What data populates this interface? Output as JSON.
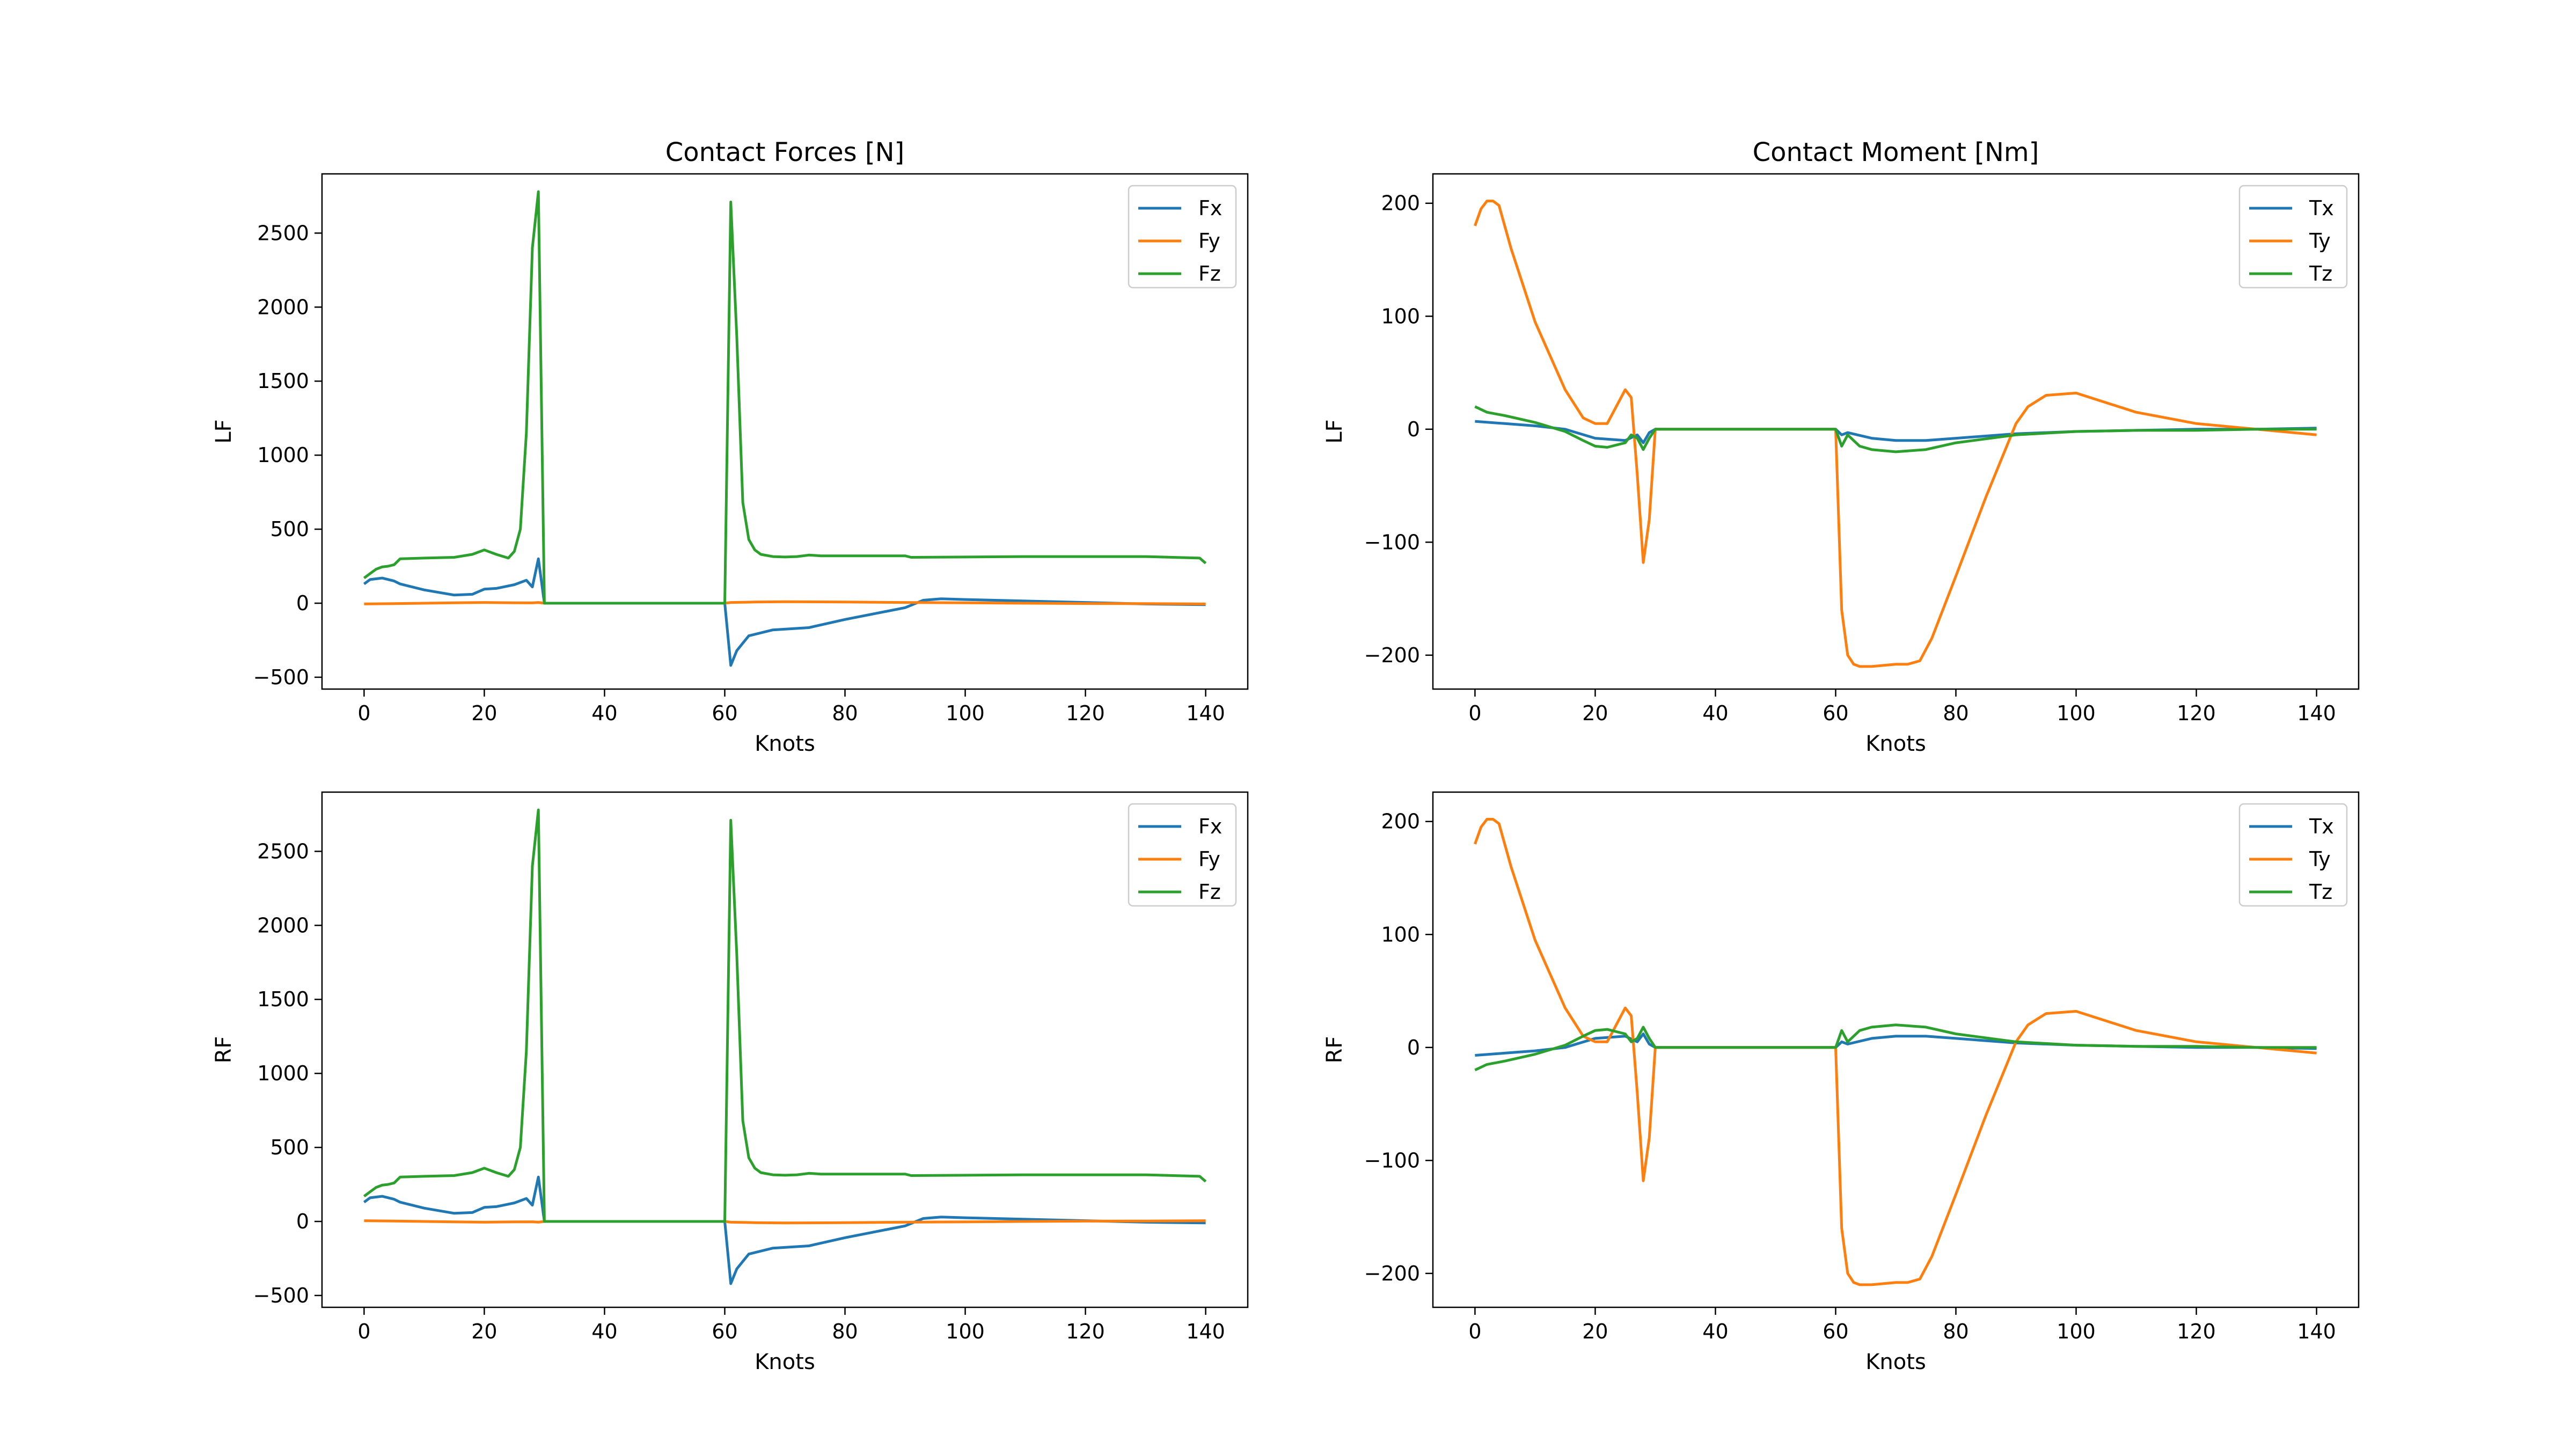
{
  "figure": {
    "colors": {
      "C0": "#1f77b4",
      "C1": "#ff7f0e",
      "C2": "#2ca02c"
    }
  },
  "chart_data": [
    {
      "type": "line",
      "title": "Contact Forces [N]",
      "xlabel": "Knots",
      "ylabel": "LF",
      "xlim": [
        -7,
        147
      ],
      "ylim": [
        -580,
        2900
      ],
      "xticks": [
        0,
        20,
        40,
        60,
        80,
        100,
        120,
        140
      ],
      "yticks": [
        -500,
        0,
        500,
        1000,
        1500,
        2000,
        2500
      ],
      "ytick_labels": [
        "−500",
        "0",
        "500",
        "1000",
        "1500",
        "2000",
        "2500"
      ],
      "legend": "top-right",
      "series": [
        {
          "name": "Fx",
          "color": "#1f77b4",
          "x": [
            0,
            1,
            3,
            5,
            6,
            10,
            15,
            18,
            20,
            22,
            25,
            27,
            28,
            29,
            30,
            60,
            61,
            62,
            64,
            68,
            74,
            80,
            85,
            90,
            93,
            96,
            100,
            110,
            120,
            130,
            140
          ],
          "y": [
            130,
            160,
            170,
            150,
            130,
            90,
            55,
            60,
            95,
            100,
            125,
            155,
            110,
            300,
            0,
            0,
            -420,
            -320,
            -220,
            -180,
            -165,
            -110,
            -70,
            -30,
            20,
            30,
            25,
            15,
            5,
            -5,
            -10
          ]
        },
        {
          "name": "Fy",
          "color": "#ff7f0e",
          "x": [
            0,
            5,
            10,
            15,
            20,
            25,
            28,
            29,
            30,
            60,
            61,
            65,
            70,
            80,
            90,
            100,
            110,
            120,
            130,
            140
          ],
          "y": [
            -5,
            -3,
            0,
            3,
            5,
            3,
            2,
            5,
            0,
            0,
            5,
            8,
            10,
            8,
            5,
            3,
            0,
            -2,
            -3,
            -5
          ]
        },
        {
          "name": "Fz",
          "color": "#2ca02c",
          "x": [
            0,
            1,
            2,
            3,
            4,
            5,
            6,
            10,
            15,
            18,
            20,
            22,
            24,
            25,
            26,
            27,
            28,
            29,
            30,
            60,
            61,
            62,
            63,
            64,
            65,
            66,
            68,
            70,
            72,
            74,
            76,
            80,
            85,
            90,
            91,
            100,
            110,
            120,
            130,
            139,
            140
          ],
          "y": [
            170,
            200,
            230,
            245,
            250,
            260,
            300,
            305,
            310,
            330,
            360,
            330,
            305,
            350,
            500,
            1150,
            2400,
            2780,
            0,
            0,
            2710,
            1800,
            680,
            430,
            360,
            330,
            315,
            312,
            315,
            325,
            320,
            320,
            320,
            320,
            310,
            312,
            315,
            315,
            315,
            305,
            270
          ]
        }
      ]
    },
    {
      "type": "line",
      "title": "Contact Moment [Nm]",
      "xlabel": "Knots",
      "ylabel": "LF",
      "xlim": [
        -7,
        147
      ],
      "ylim": [
        -230,
        226
      ],
      "xticks": [
        0,
        20,
        40,
        60,
        80,
        100,
        120,
        140
      ],
      "yticks": [
        -200,
        -100,
        0,
        100,
        200
      ],
      "ytick_labels": [
        "−200",
        "−100",
        "0",
        "100",
        "200"
      ],
      "legend": "top-right",
      "series": [
        {
          "name": "Tx",
          "color": "#1f77b4",
          "x": [
            0,
            5,
            10,
            15,
            20,
            25,
            27,
            28,
            29,
            30,
            60,
            61,
            62,
            66,
            70,
            75,
            80,
            90,
            100,
            110,
            120,
            130,
            140
          ],
          "y": [
            7,
            5,
            3,
            0,
            -8,
            -10,
            -5,
            -12,
            -3,
            0,
            0,
            -5,
            -3,
            -8,
            -10,
            -10,
            -8,
            -4,
            -2,
            -1,
            0,
            0,
            1
          ]
        },
        {
          "name": "Ty",
          "color": "#ff7f0e",
          "x": [
            0,
            1,
            2,
            3,
            4,
            6,
            10,
            15,
            18,
            20,
            22,
            24,
            25,
            26,
            27,
            28,
            29,
            30,
            60,
            61,
            62,
            63,
            64,
            66,
            70,
            72,
            74,
            76,
            80,
            85,
            90,
            92,
            95,
            100,
            110,
            120,
            130,
            140
          ],
          "y": [
            180,
            195,
            202,
            202,
            198,
            160,
            95,
            35,
            10,
            5,
            5,
            25,
            35,
            28,
            -40,
            -118,
            -80,
            0,
            0,
            -160,
            -200,
            -208,
            -210,
            -210,
            -208,
            -208,
            -205,
            -185,
            -130,
            -60,
            5,
            20,
            30,
            32,
            15,
            5,
            0,
            -5
          ]
        },
        {
          "name": "Tz",
          "color": "#2ca02c",
          "x": [
            0,
            2,
            5,
            10,
            15,
            18,
            20,
            22,
            25,
            26,
            27,
            28,
            29,
            30,
            60,
            61,
            62,
            64,
            66,
            70,
            75,
            80,
            90,
            100,
            110,
            120,
            130,
            140
          ],
          "y": [
            20,
            15,
            12,
            6,
            -2,
            -10,
            -15,
            -16,
            -12,
            -5,
            -8,
            -18,
            -8,
            0,
            0,
            -15,
            -5,
            -15,
            -18,
            -20,
            -18,
            -12,
            -5,
            -2,
            -1,
            -1,
            0,
            0
          ]
        }
      ]
    },
    {
      "type": "line",
      "title": "",
      "xlabel": "Knots",
      "ylabel": "RF",
      "xlim": [
        -7,
        147
      ],
      "ylim": [
        -580,
        2900
      ],
      "xticks": [
        0,
        20,
        40,
        60,
        80,
        100,
        120,
        140
      ],
      "yticks": [
        -500,
        0,
        500,
        1000,
        1500,
        2000,
        2500
      ],
      "ytick_labels": [
        "−500",
        "0",
        "500",
        "1000",
        "1500",
        "2000",
        "2500"
      ],
      "legend": "top-right",
      "series": [
        {
          "name": "Fx",
          "color": "#1f77b4",
          "x": [
            0,
            1,
            3,
            5,
            6,
            10,
            15,
            18,
            20,
            22,
            25,
            27,
            28,
            29,
            30,
            60,
            61,
            62,
            64,
            68,
            74,
            80,
            85,
            90,
            93,
            96,
            100,
            110,
            120,
            130,
            140
          ],
          "y": [
            130,
            160,
            170,
            150,
            130,
            90,
            55,
            60,
            95,
            100,
            125,
            155,
            110,
            300,
            0,
            0,
            -420,
            -320,
            -220,
            -180,
            -165,
            -110,
            -70,
            -30,
            20,
            30,
            25,
            15,
            5,
            -5,
            -10
          ]
        },
        {
          "name": "Fy",
          "color": "#ff7f0e",
          "x": [
            0,
            5,
            10,
            15,
            20,
            25,
            28,
            29,
            30,
            60,
            61,
            65,
            70,
            80,
            90,
            100,
            110,
            120,
            130,
            140
          ],
          "y": [
            5,
            3,
            0,
            -3,
            -5,
            -3,
            -2,
            -5,
            0,
            0,
            -5,
            -8,
            -10,
            -8,
            -5,
            -3,
            0,
            2,
            3,
            5
          ]
        },
        {
          "name": "Fz",
          "color": "#2ca02c",
          "x": [
            0,
            1,
            2,
            3,
            4,
            5,
            6,
            10,
            15,
            18,
            20,
            22,
            24,
            25,
            26,
            27,
            28,
            29,
            30,
            60,
            61,
            62,
            63,
            64,
            65,
            66,
            68,
            70,
            72,
            74,
            76,
            80,
            85,
            90,
            91,
            100,
            110,
            120,
            130,
            139,
            140
          ],
          "y": [
            170,
            200,
            230,
            245,
            250,
            260,
            300,
            305,
            310,
            330,
            360,
            330,
            305,
            350,
            500,
            1150,
            2400,
            2780,
            0,
            0,
            2710,
            1800,
            680,
            430,
            360,
            330,
            315,
            312,
            315,
            325,
            320,
            320,
            320,
            320,
            310,
            312,
            315,
            315,
            315,
            305,
            270
          ]
        }
      ]
    },
    {
      "type": "line",
      "title": "",
      "xlabel": "Knots",
      "ylabel": "RF",
      "xlim": [
        -7,
        147
      ],
      "ylim": [
        -230,
        226
      ],
      "xticks": [
        0,
        20,
        40,
        60,
        80,
        100,
        120,
        140
      ],
      "yticks": [
        -200,
        -100,
        0,
        100,
        200
      ],
      "ytick_labels": [
        "−200",
        "−100",
        "0",
        "100",
        "200"
      ],
      "legend": "top-right",
      "series": [
        {
          "name": "Tx",
          "color": "#1f77b4",
          "x": [
            0,
            5,
            10,
            15,
            20,
            25,
            27,
            28,
            29,
            30,
            60,
            61,
            62,
            66,
            70,
            75,
            80,
            90,
            100,
            110,
            120,
            130,
            140
          ],
          "y": [
            -7,
            -5,
            -3,
            0,
            8,
            10,
            5,
            12,
            3,
            0,
            0,
            5,
            3,
            8,
            10,
            10,
            8,
            4,
            2,
            1,
            0,
            0,
            -1
          ]
        },
        {
          "name": "Ty",
          "color": "#ff7f0e",
          "x": [
            0,
            1,
            2,
            3,
            4,
            6,
            10,
            15,
            18,
            20,
            22,
            24,
            25,
            26,
            27,
            28,
            29,
            30,
            60,
            61,
            62,
            63,
            64,
            66,
            70,
            72,
            74,
            76,
            80,
            85,
            90,
            92,
            95,
            100,
            110,
            120,
            130,
            140
          ],
          "y": [
            180,
            195,
            202,
            202,
            198,
            160,
            95,
            35,
            10,
            5,
            5,
            25,
            35,
            28,
            -40,
            -118,
            -80,
            0,
            0,
            -160,
            -200,
            -208,
            -210,
            -210,
            -208,
            -208,
            -205,
            -185,
            -130,
            -60,
            5,
            20,
            30,
            32,
            15,
            5,
            0,
            -5
          ]
        },
        {
          "name": "Tz",
          "color": "#2ca02c",
          "x": [
            0,
            2,
            5,
            10,
            15,
            18,
            20,
            22,
            25,
            26,
            27,
            28,
            29,
            30,
            60,
            61,
            62,
            64,
            66,
            70,
            75,
            80,
            90,
            100,
            110,
            120,
            130,
            140
          ],
          "y": [
            -20,
            -15,
            -12,
            -6,
            2,
            10,
            15,
            16,
            12,
            5,
            8,
            18,
            8,
            0,
            0,
            15,
            5,
            15,
            18,
            20,
            18,
            12,
            5,
            2,
            1,
            1,
            0,
            0
          ]
        }
      ]
    }
  ]
}
